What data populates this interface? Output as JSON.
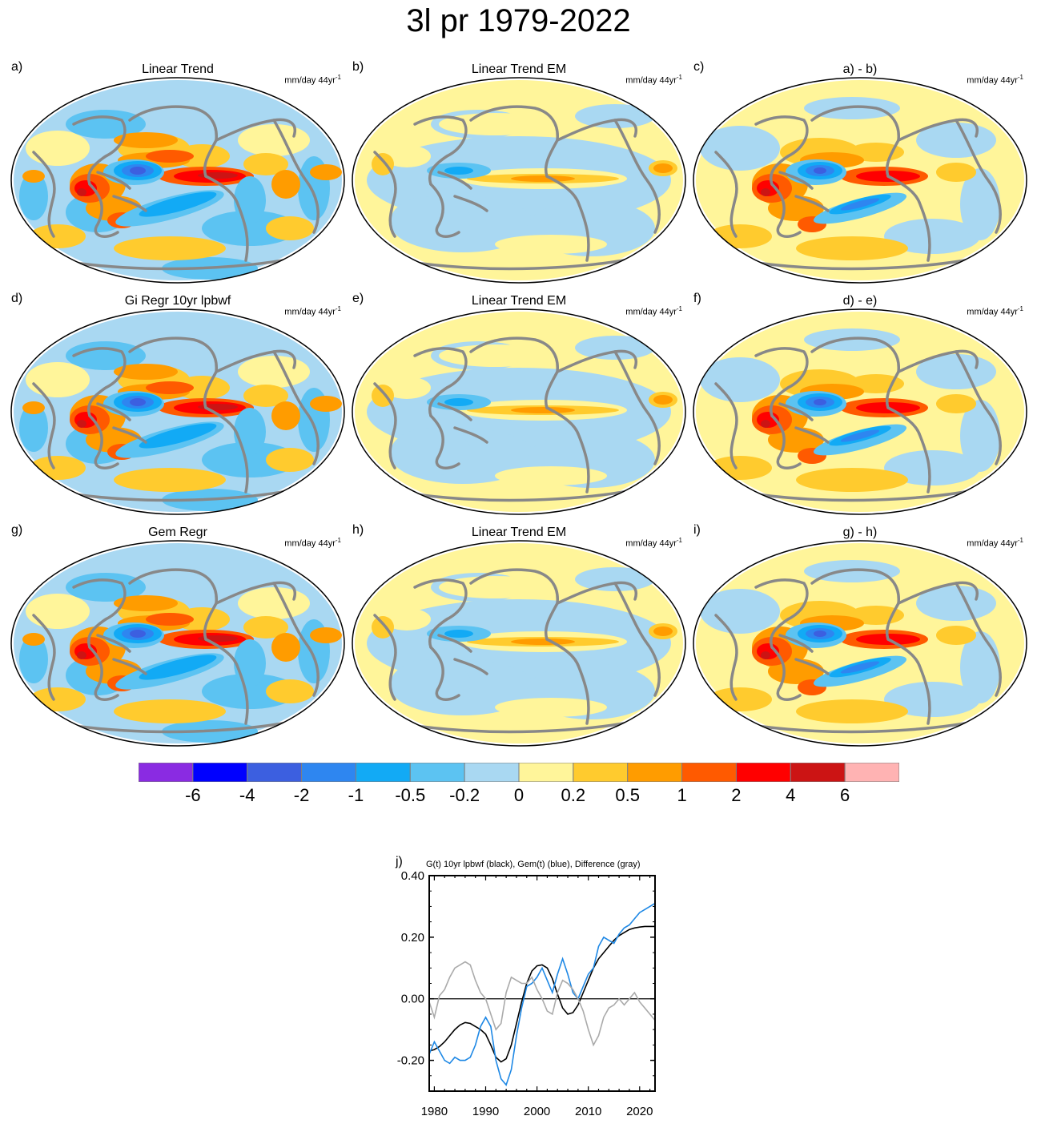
{
  "title": "3l pr 1979-2022",
  "units_text": "mm/day 44yr",
  "units_sup": "-1",
  "panels": [
    {
      "label": "a)",
      "title": "Linear Trend",
      "pattern": "obs"
    },
    {
      "label": "b)",
      "title": "Linear Trend EM",
      "pattern": "em"
    },
    {
      "label": "c)",
      "title": "a) - b)",
      "pattern": "diff"
    },
    {
      "label": "d)",
      "title": "Gi Regr 10yr lpbwf",
      "pattern": "obs"
    },
    {
      "label": "e)",
      "title": "Linear Trend EM",
      "pattern": "em"
    },
    {
      "label": "f)",
      "title": "d) - e)",
      "pattern": "diff"
    },
    {
      "label": "g)",
      "title": "Gem Regr",
      "pattern": "obs"
    },
    {
      "label": "h)",
      "title": "Linear Trend EM",
      "pattern": "em"
    },
    {
      "label": "i)",
      "title": "g) - h)",
      "pattern": "diff"
    }
  ],
  "colorbar": {
    "colors": [
      "#8a2be2",
      "#0000ff",
      "#3c5fe0",
      "#2e86f0",
      "#12aaf5",
      "#5cc3f2",
      "#a9d8f2",
      "#fff59a",
      "#ffcb2e",
      "#ff9c00",
      "#ff5a00",
      "#ff0000",
      "#cc1414",
      "#ffb3b3"
    ],
    "labels": [
      "-6",
      "-4",
      "-2",
      "-1",
      "-0.5",
      "-0.2",
      "0",
      "0.2",
      "0.5",
      "1",
      "2",
      "4",
      "6"
    ]
  },
  "chart_data": {
    "type": "line",
    "panel_label": "j)",
    "title": "G(t)  10yr lpbwf (black), Gem(t) (blue), Difference (gray)",
    "xlabel": "",
    "ylabel": "",
    "xlim": [
      1979,
      2023
    ],
    "ylim": [
      -0.3,
      0.4
    ],
    "xticks": [
      1980,
      1990,
      2000,
      2010,
      2020
    ],
    "yticks": [
      -0.2,
      0.0,
      0.2,
      0.4
    ],
    "ytick_labels": [
      "-0.20",
      "0.00",
      "0.20",
      "0.40"
    ],
    "zero_line": true,
    "series": [
      {
        "color": "#000000",
        "x": [
          1979,
          1980,
          1981,
          1982,
          1983,
          1984,
          1985,
          1986,
          1987,
          1988,
          1989,
          1990,
          1991,
          1992,
          1993,
          1994,
          1995,
          1996,
          1997,
          1998,
          1999,
          2000,
          2001,
          2002,
          2003,
          2004,
          2005,
          2006,
          2007,
          2008,
          2009,
          2010,
          2011,
          2012,
          2013,
          2014,
          2015,
          2016,
          2017,
          2018,
          2019,
          2020,
          2021,
          2022,
          2023
        ],
        "y": [
          -0.17,
          -0.165,
          -0.155,
          -0.14,
          -0.12,
          -0.1,
          -0.085,
          -0.077,
          -0.08,
          -0.09,
          -0.1,
          -0.115,
          -0.15,
          -0.19,
          -0.205,
          -0.195,
          -0.15,
          -0.08,
          -0.01,
          0.05,
          0.09,
          0.107,
          0.11,
          0.1,
          0.065,
          0.015,
          -0.03,
          -0.05,
          -0.045,
          -0.02,
          0.02,
          0.06,
          0.1,
          0.13,
          0.15,
          0.17,
          0.19,
          0.205,
          0.215,
          0.225,
          0.23,
          0.233,
          0.235,
          0.235,
          0.235
        ]
      },
      {
        "color": "#1e88e5",
        "x": [
          1979,
          1980,
          1981,
          1982,
          1983,
          1984,
          1985,
          1986,
          1987,
          1988,
          1989,
          1990,
          1991,
          1992,
          1993,
          1994,
          1995,
          1996,
          1997,
          1998,
          1999,
          2000,
          2001,
          2002,
          2003,
          2004,
          2005,
          2006,
          2007,
          2008,
          2009,
          2010,
          2011,
          2012,
          2013,
          2014,
          2015,
          2016,
          2017,
          2018,
          2019,
          2020,
          2021,
          2022,
          2023
        ],
        "y": [
          -0.18,
          -0.14,
          -0.17,
          -0.2,
          -0.21,
          -0.19,
          -0.2,
          -0.2,
          -0.19,
          -0.15,
          -0.09,
          -0.06,
          -0.09,
          -0.2,
          -0.26,
          -0.28,
          -0.23,
          -0.12,
          -0.03,
          0.04,
          0.05,
          0.07,
          0.1,
          0.06,
          0.02,
          0.08,
          0.13,
          0.08,
          0.02,
          0.0,
          0.04,
          0.08,
          0.1,
          0.17,
          0.2,
          0.19,
          0.18,
          0.21,
          0.23,
          0.24,
          0.26,
          0.28,
          0.29,
          0.3,
          0.31
        ]
      },
      {
        "color": "#aaaaaa",
        "x": [
          1979,
          1980,
          1981,
          1982,
          1983,
          1984,
          1985,
          1986,
          1987,
          1988,
          1989,
          1990,
          1991,
          1992,
          1993,
          1994,
          1995,
          1996,
          1997,
          1998,
          1999,
          2000,
          2001,
          2002,
          2003,
          2004,
          2005,
          2006,
          2007,
          2008,
          2009,
          2010,
          2011,
          2012,
          2013,
          2014,
          2015,
          2016,
          2017,
          2018,
          2019,
          2020,
          2021,
          2022,
          2023
        ],
        "y": [
          -0.01,
          -0.06,
          0.01,
          0.03,
          0.07,
          0.1,
          0.11,
          0.12,
          0.11,
          0.06,
          0.02,
          0.0,
          -0.05,
          -0.1,
          -0.08,
          0.02,
          0.07,
          0.06,
          0.05,
          0.05,
          0.07,
          0.03,
          0.0,
          -0.04,
          -0.05,
          0.02,
          0.06,
          0.05,
          0.03,
          0.0,
          -0.04,
          -0.1,
          -0.15,
          -0.12,
          -0.06,
          -0.03,
          -0.02,
          0.0,
          -0.02,
          0.0,
          0.02,
          -0.01,
          -0.03,
          -0.05,
          -0.07
        ]
      }
    ]
  }
}
